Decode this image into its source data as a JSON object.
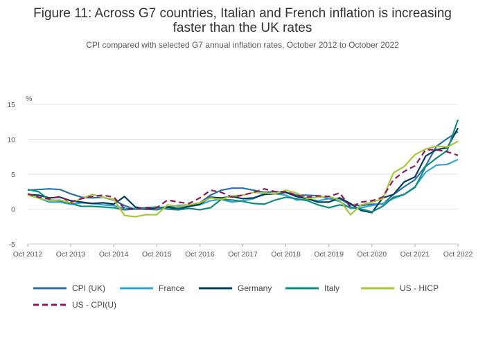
{
  "chart_data": {
    "type": "line",
    "title_line1": "Figure 11: Across G7 countries, Italian and French inflation is increasing",
    "title_line2": "faster than the UK rates",
    "subtitle": "CPI compared with selected G7 annual inflation rates, October 2012 to October 2022",
    "ylabel": "%",
    "ylim": [
      -5,
      15
    ],
    "yticks": [
      15,
      10,
      5,
      0,
      -5
    ],
    "xlim": [
      0,
      10
    ],
    "x_ticks": [
      "Oct 2012",
      "Oct 2013",
      "Oct 2014",
      "Oct 2015",
      "Oct 2016",
      "Oct 2017",
      "Oct 2018",
      "Oct 2019",
      "Oct 2020",
      "Oct 2021",
      "Oct 2022"
    ],
    "series": [
      {
        "name": "CPI (UK)",
        "color": "#2e6fa3",
        "dash": "",
        "x": [
          0,
          0.25,
          0.5,
          0.75,
          1,
          1.25,
          1.5,
          1.75,
          2,
          2.25,
          2.5,
          2.75,
          3,
          3.25,
          3.5,
          3.75,
          4,
          4.25,
          4.5,
          4.75,
          5,
          5.25,
          5.5,
          5.75,
          6,
          6.25,
          6.5,
          6.75,
          7,
          7.25,
          7.5,
          7.75,
          8,
          8.25,
          8.5,
          8.75,
          9,
          9.25,
          9.5,
          9.75,
          10
        ],
        "y": [
          2.7,
          2.8,
          2.9,
          2.8,
          2.2,
          1.7,
          1.6,
          1.7,
          1.3,
          0.5,
          0.0,
          0.0,
          -0.1,
          0.3,
          0.5,
          0.6,
          0.9,
          2.0,
          2.7,
          3.0,
          3.0,
          2.7,
          2.4,
          2.5,
          2.4,
          2.0,
          2.0,
          1.9,
          1.5,
          1.5,
          0.6,
          0.5,
          0.7,
          0.7,
          2.1,
          3.2,
          4.2,
          6.2,
          9.0,
          10.1,
          11.1
        ]
      },
      {
        "name": "France",
        "color": "#36a3d5",
        "dash": "",
        "x": [
          0,
          0.25,
          0.5,
          0.75,
          1,
          1.25,
          1.5,
          1.75,
          2,
          2.25,
          2.5,
          2.75,
          3,
          3.25,
          3.5,
          3.75,
          4,
          4.25,
          4.5,
          4.75,
          5,
          5.25,
          5.5,
          5.75,
          6,
          6.25,
          6.5,
          6.75,
          7,
          7.25,
          7.5,
          7.75,
          8,
          8.25,
          8.5,
          8.75,
          9,
          9.25,
          9.5,
          9.75,
          10
        ],
        "y": [
          2.1,
          1.6,
          1.0,
          1.0,
          0.7,
          0.9,
          0.8,
          0.6,
          0.5,
          0.1,
          0.1,
          0.1,
          0.2,
          0.2,
          0.2,
          0.4,
          0.6,
          1.2,
          1.4,
          1.0,
          1.2,
          1.5,
          2.3,
          2.2,
          2.0,
          1.3,
          1.4,
          1.2,
          1.5,
          1.1,
          0.1,
          0.2,
          0.5,
          0.8,
          1.5,
          2.1,
          3.2,
          5.3,
          6.3,
          6.4,
          7.1
        ]
      },
      {
        "name": "Germany",
        "color": "#003c57",
        "dash": "",
        "x": [
          0,
          0.25,
          0.5,
          0.75,
          1,
          1.25,
          1.5,
          1.75,
          2,
          2.25,
          2.5,
          2.75,
          3,
          3.25,
          3.5,
          3.75,
          4,
          4.25,
          4.5,
          4.75,
          5,
          5.25,
          5.5,
          5.75,
          6,
          6.25,
          6.5,
          6.75,
          7,
          7.25,
          7.5,
          7.75,
          8,
          8.25,
          8.5,
          8.75,
          9,
          9.25,
          9.5,
          9.75,
          10
        ],
        "y": [
          2.1,
          2.0,
          1.6,
          1.7,
          1.2,
          1.0,
          0.8,
          0.9,
          0.7,
          1.8,
          0.3,
          0.0,
          0.2,
          0.3,
          0.0,
          0.4,
          0.7,
          1.7,
          1.6,
          1.8,
          1.5,
          1.6,
          2.1,
          2.2,
          2.4,
          1.8,
          1.5,
          1.0,
          1.0,
          1.6,
          0.8,
          -0.2,
          -0.5,
          1.6,
          2.1,
          3.9,
          4.6,
          7.6,
          8.5,
          8.8,
          11.6
        ]
      },
      {
        "name": "Italy",
        "color": "#118c7b",
        "dash": "",
        "x": [
          0,
          0.25,
          0.5,
          0.75,
          1,
          1.25,
          1.5,
          1.75,
          2,
          2.25,
          2.5,
          2.75,
          3,
          3.25,
          3.5,
          3.75,
          4,
          4.25,
          4.5,
          4.75,
          5,
          5.25,
          5.5,
          5.75,
          6,
          6.25,
          6.5,
          6.75,
          7,
          7.25,
          7.5,
          7.75,
          8,
          8.25,
          8.5,
          8.75,
          9,
          9.25,
          9.5,
          9.75,
          10
        ],
        "y": [
          2.8,
          2.5,
          1.3,
          1.2,
          0.8,
          0.4,
          0.4,
          0.3,
          0.2,
          -0.1,
          0.0,
          0.2,
          0.3,
          0.0,
          -0.1,
          0.1,
          -0.1,
          0.2,
          1.4,
          1.3,
          1.1,
          0.8,
          0.7,
          1.3,
          1.7,
          1.5,
          1.2,
          0.6,
          0.2,
          0.6,
          0.3,
          0.0,
          -0.4,
          0.4,
          1.7,
          2.1,
          3.1,
          6.1,
          7.3,
          8.4,
          12.8
        ]
      },
      {
        "name": "US - HICP",
        "color": "#a8c63d",
        "dash": "",
        "x": [
          0,
          0.25,
          0.5,
          0.75,
          1,
          1.25,
          1.5,
          1.75,
          2,
          2.25,
          2.5,
          2.75,
          3,
          3.25,
          3.5,
          3.75,
          4,
          4.25,
          4.5,
          4.75,
          5,
          5.25,
          5.5,
          5.75,
          6,
          6.25,
          6.5,
          6.75,
          7,
          7.25,
          7.5,
          7.75,
          8,
          8.25,
          8.5,
          8.75,
          9,
          9.25,
          9.5,
          9.75,
          10
        ],
        "y": [
          2.0,
          1.6,
          1.2,
          1.3,
          0.9,
          1.5,
          2.1,
          1.7,
          1.4,
          -0.9,
          -1.1,
          -0.8,
          -0.8,
          0.6,
          0.4,
          0.6,
          0.9,
          1.6,
          1.4,
          1.9,
          2.0,
          2.4,
          2.3,
          2.2,
          2.7,
          2.3,
          1.5,
          1.7,
          1.8,
          1.3,
          -0.8,
          0.6,
          1.0,
          1.5,
          5.2,
          6.1,
          7.8,
          8.6,
          9.0,
          8.9,
          9.7
        ]
      },
      {
        "name": "US - CPI(U)",
        "color": "#8a1a5b",
        "dash": "8,5",
        "x": [
          0,
          0.25,
          0.5,
          0.75,
          1,
          1.25,
          1.5,
          1.75,
          2,
          2.25,
          2.5,
          2.75,
          3,
          3.25,
          3.5,
          3.75,
          4,
          4.25,
          4.5,
          4.75,
          5,
          5.25,
          5.5,
          5.75,
          6,
          6.25,
          6.5,
          6.75,
          7,
          7.25,
          7.5,
          7.75,
          8,
          8.25,
          8.5,
          8.75,
          9,
          9.25,
          9.5,
          9.75,
          10
        ],
        "y": [
          2.2,
          1.7,
          1.5,
          1.8,
          1.0,
          1.5,
          1.8,
          2.0,
          1.7,
          0.1,
          0.0,
          0.2,
          0.2,
          1.3,
          1.0,
          0.8,
          1.6,
          2.7,
          2.4,
          1.7,
          2.0,
          2.4,
          2.9,
          2.5,
          2.5,
          2.0,
          1.7,
          1.9,
          1.8,
          2.3,
          0.3,
          1.0,
          1.2,
          1.7,
          4.2,
          5.4,
          6.2,
          8.5,
          8.5,
          8.2,
          7.7
        ]
      }
    ]
  }
}
